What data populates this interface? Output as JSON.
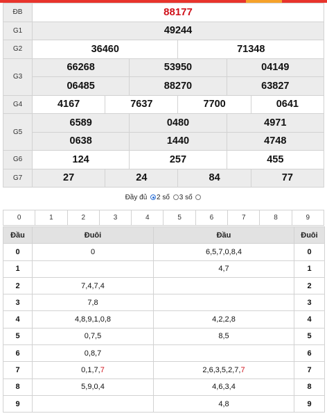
{
  "colors": {
    "accent_red": "#d0121b",
    "top_bar_red": "#e8342c",
    "top_bar_orange": "#f6a22a",
    "radio_blue": "#2a6fd6",
    "label_gray": "#ececec"
  },
  "results": {
    "db": {
      "label": "ĐB",
      "values": [
        "88177"
      ]
    },
    "g1": {
      "label": "G1",
      "values": [
        "49244"
      ]
    },
    "g2": {
      "label": "G2",
      "values": [
        "36460",
        "71348"
      ]
    },
    "g3": {
      "label": "G3",
      "row1": [
        "66268",
        "53950",
        "04149"
      ],
      "row2": [
        "06485",
        "88270",
        "63827"
      ]
    },
    "g4": {
      "label": "G4",
      "values": [
        "4167",
        "7637",
        "7700",
        "0641"
      ]
    },
    "g5": {
      "label": "G5",
      "row1": [
        "6589",
        "0480",
        "4971"
      ],
      "row2": [
        "0638",
        "1440",
        "4748"
      ]
    },
    "g6": {
      "label": "G6",
      "values": [
        "124",
        "257",
        "455"
      ]
    },
    "g7": {
      "label": "G7",
      "values": [
        "27",
        "24",
        "84",
        "77"
      ]
    }
  },
  "options": {
    "full_label": "Đầy đủ",
    "two_digit_label": "2 số",
    "three_digit_label": "3 số",
    "selected": "2 số"
  },
  "digits": [
    "0",
    "1",
    "2",
    "3",
    "4",
    "5",
    "6",
    "7",
    "8",
    "9"
  ],
  "loto": {
    "headers": {
      "dau": "Đầu",
      "duoi": "Đuôi",
      "dau2": "Đầu",
      "duoi2": "Đuôi"
    },
    "rows": [
      {
        "dau": "0",
        "duoi_list": "0",
        "dau_list": "6,5,7,0,8,4",
        "duoi": "0"
      },
      {
        "dau": "1",
        "duoi_list": "",
        "dau_list": "4,7",
        "duoi": "1"
      },
      {
        "dau": "2",
        "duoi_list": "7,4,7,4",
        "dau_list": "",
        "duoi": "2"
      },
      {
        "dau": "3",
        "duoi_list": "7,8",
        "dau_list": "",
        "duoi": "3"
      },
      {
        "dau": "4",
        "duoi_list": "4,8,9,1,0,8",
        "dau_list": "4,2,2,8",
        "duoi": "4"
      },
      {
        "dau": "5",
        "duoi_list": "0,7,5",
        "dau_list": "8,5",
        "duoi": "5"
      },
      {
        "dau": "6",
        "duoi_list": "0,8,7",
        "dau_list": "",
        "duoi": "6"
      },
      {
        "dau": "7",
        "duoi_list_main": "0,1,7,",
        "duoi_list_hl": "7",
        "dau_list_main": "2,6,3,5,2,7,",
        "dau_list_hl": "7",
        "duoi": "7"
      },
      {
        "dau": "8",
        "duoi_list": "5,9,0,4",
        "dau_list": "4,6,3,4",
        "duoi": "8"
      },
      {
        "dau": "9",
        "duoi_list": "",
        "dau_list": "4,8",
        "duoi": "9"
      }
    ]
  }
}
